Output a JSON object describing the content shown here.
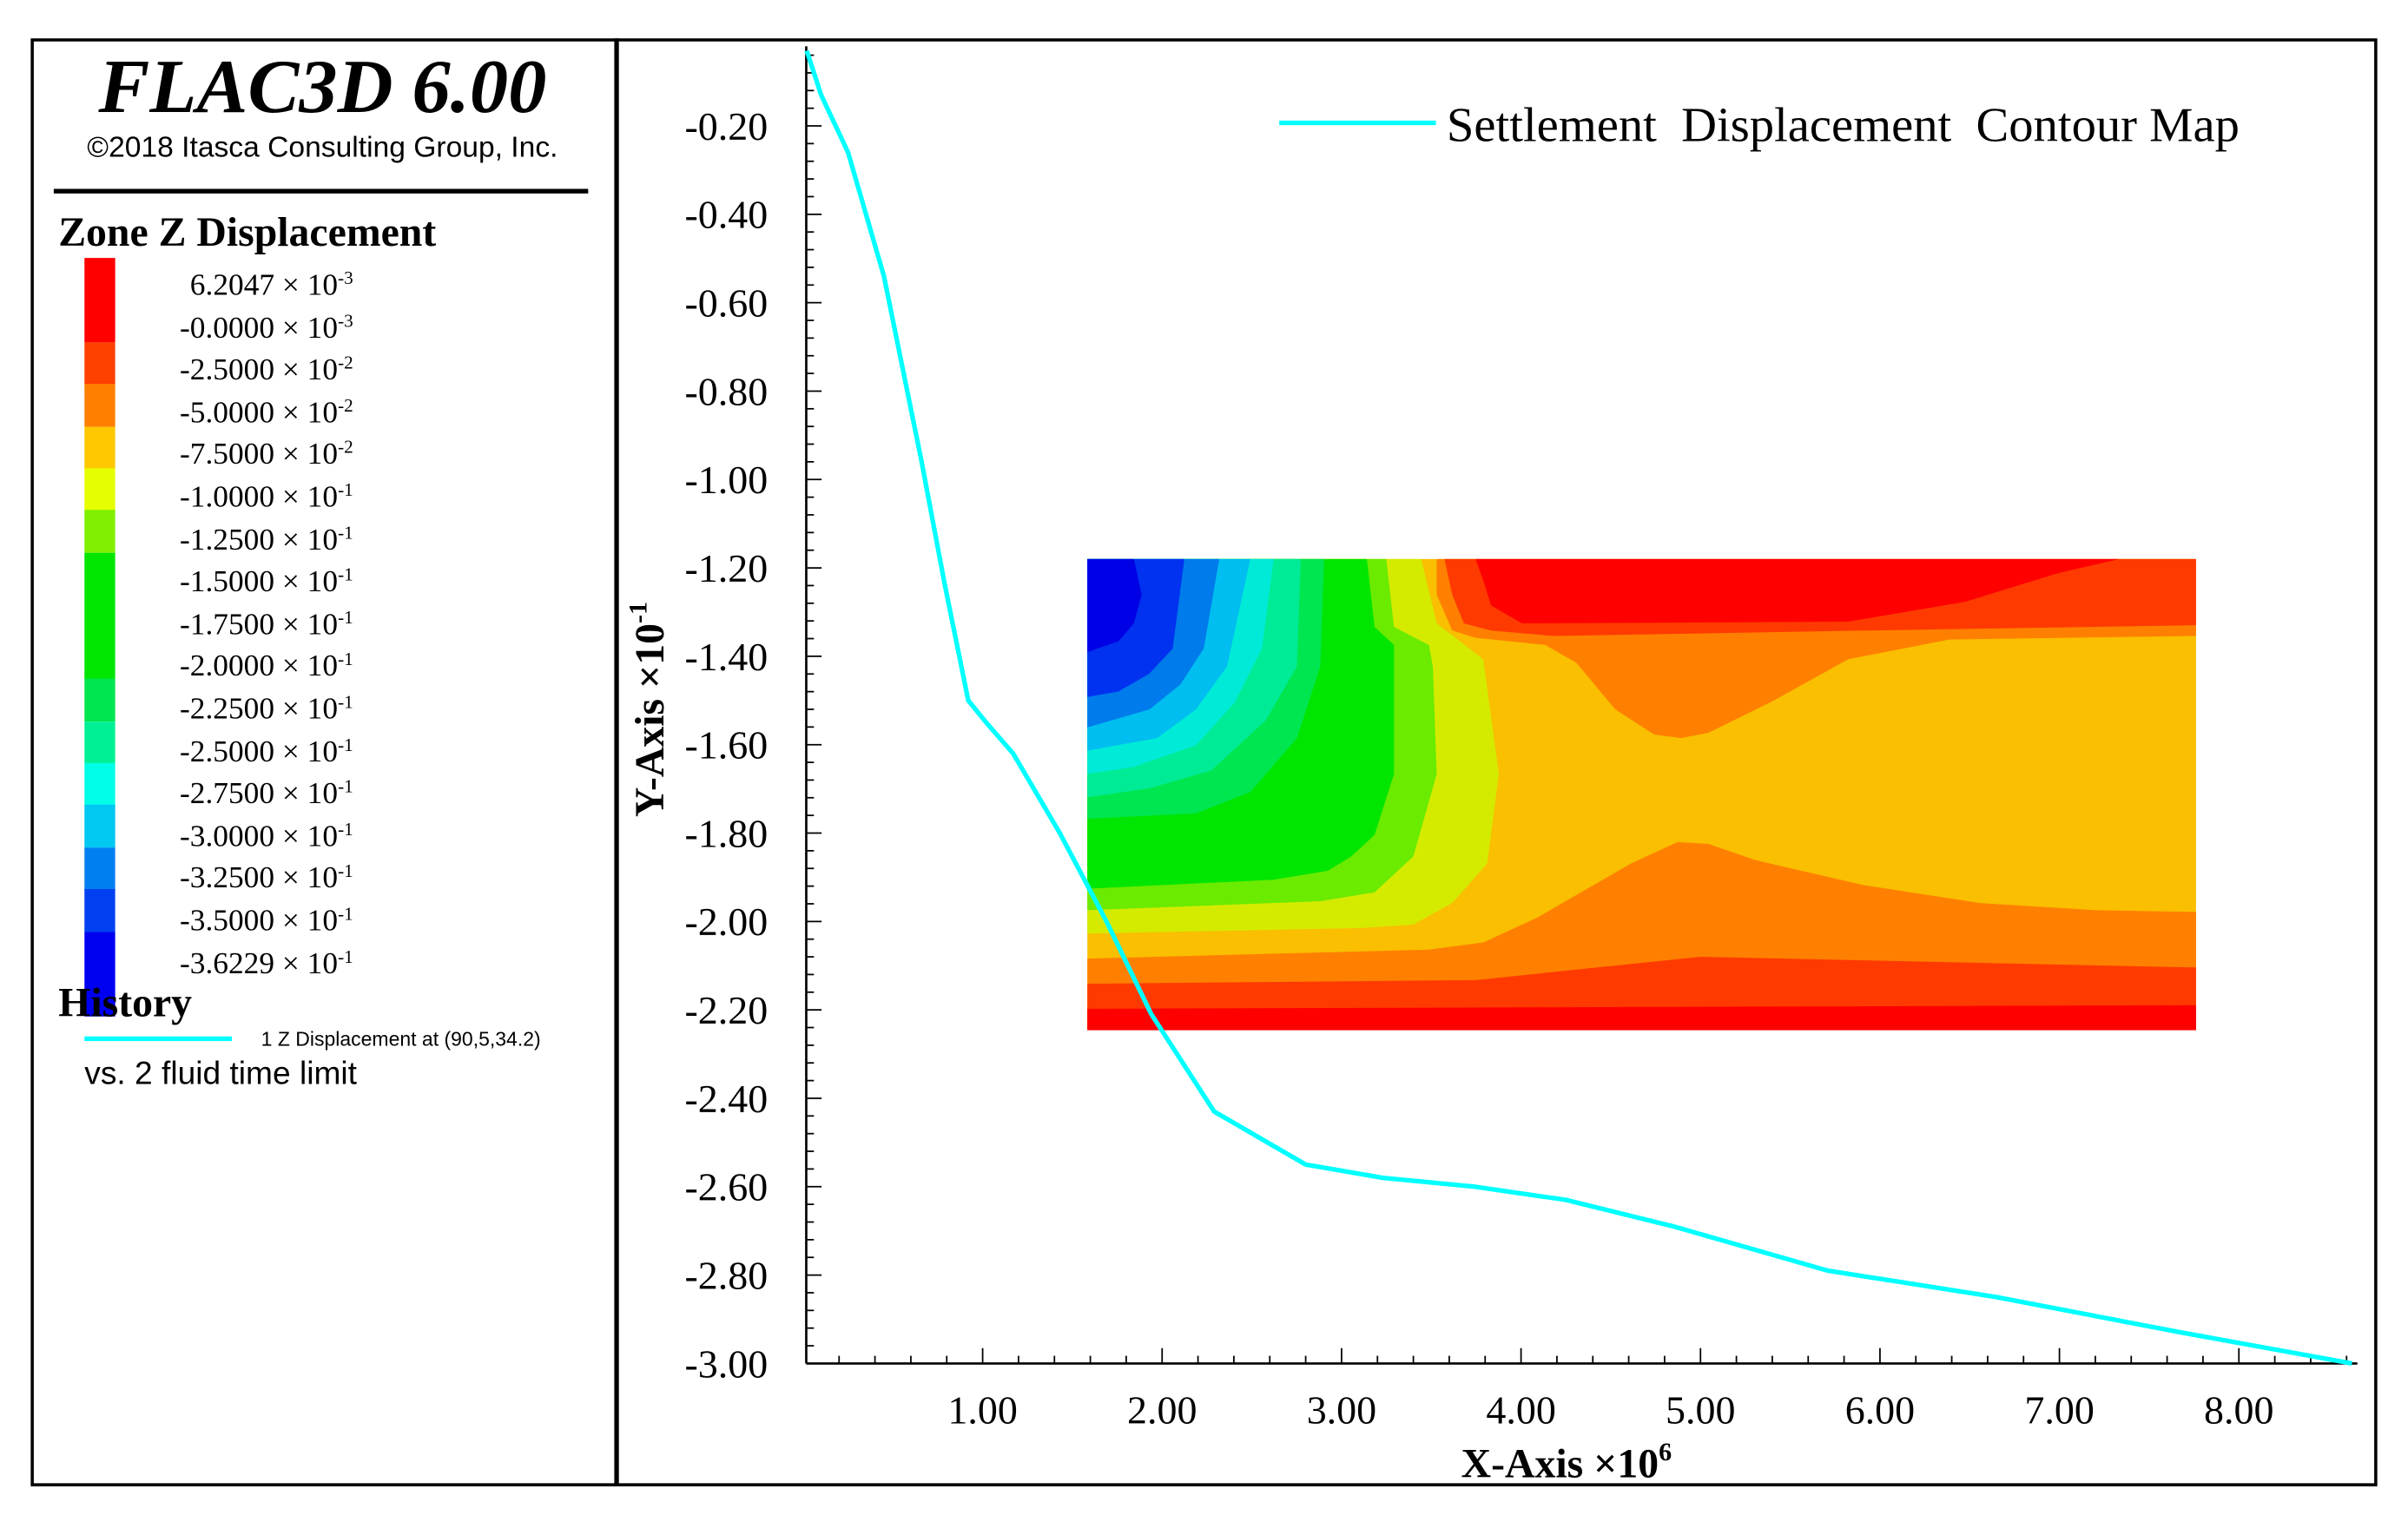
{
  "app": {
    "title": "FLAC3D 6.00",
    "copyright": "©2018 Itasca Consulting Group, Inc."
  },
  "contour_legend": {
    "title": "Zone Z Displacement",
    "labels": [
      {
        "mantissa": "6.2047 × 10",
        "exp": "-3"
      },
      {
        "mantissa": "-0.0000 × 10",
        "exp": "-3"
      },
      {
        "mantissa": "-2.5000 × 10",
        "exp": "-2"
      },
      {
        "mantissa": "-5.0000 × 10",
        "exp": "-2"
      },
      {
        "mantissa": "-7.5000 × 10",
        "exp": "-2"
      },
      {
        "mantissa": "-1.0000 × 10",
        "exp": "-1"
      },
      {
        "mantissa": "-1.2500 × 10",
        "exp": "-1"
      },
      {
        "mantissa": "-1.5000 × 10",
        "exp": "-1"
      },
      {
        "mantissa": "-1.7500 × 10",
        "exp": "-1"
      },
      {
        "mantissa": "-2.0000 × 10",
        "exp": "-1"
      },
      {
        "mantissa": "-2.2500 × 10",
        "exp": "-1"
      },
      {
        "mantissa": "-2.5000 × 10",
        "exp": "-1"
      },
      {
        "mantissa": "-2.7500 × 10",
        "exp": "-1"
      },
      {
        "mantissa": "-3.0000 × 10",
        "exp": "-1"
      },
      {
        "mantissa": "-3.2500 × 10",
        "exp": "-1"
      },
      {
        "mantissa": "-3.5000 × 10",
        "exp": "-1"
      },
      {
        "mantissa": "-3.6229 × 10",
        "exp": "-1"
      }
    ],
    "colors": [
      "#FF0000",
      "#FF4000",
      "#FF8000",
      "#FFC800",
      "#E6FF00",
      "#80F000",
      "#00E600",
      "#00E650",
      "#00F096",
      "#00FFE6",
      "#00C8F0",
      "#0080F0",
      "#0040F0",
      "#0000F0"
    ]
  },
  "history_legend": {
    "title": "History",
    "item": "1 Z Displacement at (90,5,34.2)",
    "vs": "vs. 2 fluid time limit",
    "line_color": "#00FFFF"
  },
  "chart_data": {
    "type": "line",
    "xlabel": "X-Axis ×10",
    "xlabel_exp": "6",
    "ylabel": "Y-Axis ×10",
    "ylabel_exp": "-1",
    "xlim": [
      0,
      8.66
    ],
    "ylim": [
      -3.0,
      -0.02
    ],
    "x_ticks": [
      "1.00",
      "2.00",
      "3.00",
      "4.00",
      "5.00",
      "6.00",
      "7.00",
      "8.00"
    ],
    "y_ticks": [
      "-0.20",
      "-0.40",
      "-0.60",
      "-0.80",
      "-1.00",
      "-1.20",
      "-1.40",
      "-1.60",
      "-1.80",
      "-2.00",
      "-2.20",
      "-2.40",
      "-2.60",
      "-2.80",
      "-3.00"
    ],
    "grid": false,
    "legend_position": "top-right",
    "series": [
      {
        "name": "Settlement  Displacement  Contour Map",
        "color": "#00FFFF",
        "x": [
          0.02,
          0.1,
          0.25,
          0.45,
          0.66,
          0.79,
          0.92,
          1.02,
          1.17,
          1.43,
          1.69,
          1.94,
          2.29,
          2.8,
          3.23,
          3.74,
          4.25,
          4.85,
          5.71,
          6.65,
          7.68,
          8.63
        ],
        "y": [
          -0.03,
          -0.13,
          -0.26,
          -0.54,
          -0.96,
          -1.24,
          -1.5,
          -1.55,
          -1.62,
          -1.8,
          -2.0,
          -2.21,
          -2.43,
          -2.55,
          -2.58,
          -2.6,
          -2.63,
          -2.69,
          -2.79,
          -2.85,
          -2.93,
          -3.0
        ]
      }
    ],
    "inset": "zone z displacement contour plot"
  }
}
